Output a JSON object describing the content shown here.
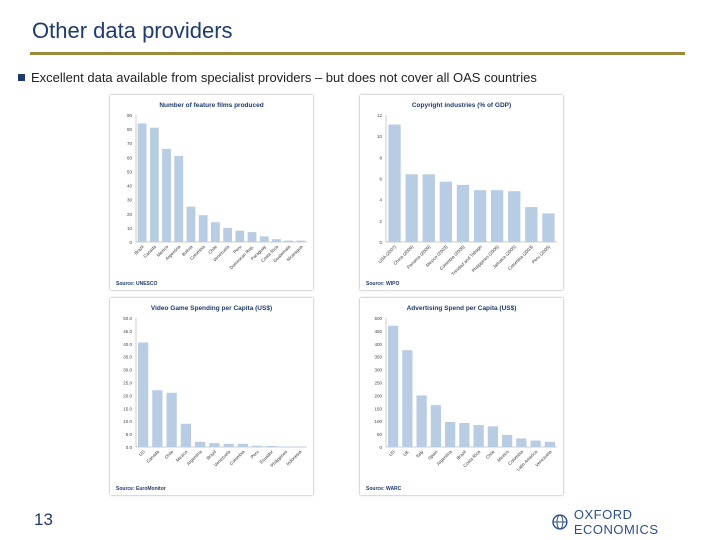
{
  "slide": {
    "title": "Other data providers",
    "bullet": "Excellent data available from specialist providers – but does not cover all OAS countries",
    "page_number": "13",
    "logo_text": "OXFORD ECONOMICS"
  },
  "colors": {
    "bar": "#b8cce4",
    "title": "#1f3a6e",
    "rule": "#9a8a3a",
    "source": "#1f3a6e"
  },
  "chart_data": [
    {
      "type": "bar",
      "title": "Number of feature films produced",
      "source": "Source: UNESCO",
      "categories": [
        "Brazil",
        "Canada",
        "Mexico",
        "Argentina",
        "Bolivia",
        "Colombia",
        "Chile",
        "Venezuela",
        "Peru",
        "Dominican Rep.",
        "Paraguay",
        "Costa Rica",
        "Guatemala",
        "Nicaragua"
      ],
      "values": [
        84,
        81,
        66,
        61,
        25,
        19,
        14,
        10,
        8,
        7,
        4,
        2,
        1,
        1
      ],
      "ylim": [
        0,
        90
      ],
      "yticks": [
        "0",
        "10",
        "20",
        "30",
        "40",
        "50",
        "60",
        "70",
        "80",
        "90"
      ]
    },
    {
      "type": "bar",
      "title": "Copyright industries (% of GDP)",
      "source": "Source: WIPO",
      "categories": [
        "USA (2007)",
        "China (2006)",
        "Panama (2006)",
        "Mexico (2003)",
        "Colombia (2006)",
        "Trinidad and Tobago",
        "Philippines (2006)",
        "Jamaica (2005)",
        "Colombia (2003)",
        "Peru (2005)"
      ],
      "values": [
        11.1,
        6.4,
        6.4,
        5.7,
        5.4,
        4.9,
        4.9,
        4.8,
        3.3,
        2.7
      ],
      "ylim": [
        0,
        12
      ],
      "yticks": [
        "0",
        "2",
        "4",
        "6",
        "8",
        "10",
        "12"
      ]
    },
    {
      "type": "bar",
      "title": "Video Game Spending per Capita (US$)",
      "source": "Source: EuroMonitor",
      "categories": [
        "US",
        "Canada",
        "Chile",
        "Mexico",
        "Argentina",
        "Brazil",
        "Venezuela",
        "Colombia",
        "Peru",
        "Ecuador",
        "Philippines",
        "Indonesia"
      ],
      "values": [
        40.5,
        22,
        21,
        9,
        2,
        1.5,
        1.2,
        1.2,
        0.5,
        0.4,
        0.2,
        0.1
      ],
      "ylim": [
        0,
        50
      ],
      "yticks": [
        "0.0",
        "5.0",
        "10.0",
        "15.0",
        "20.0",
        "25.0",
        "30.0",
        "35.0",
        "40.0",
        "45.0",
        "50.0"
      ]
    },
    {
      "type": "bar",
      "title": "Advertising Spend per Capita (US$)",
      "source": "Source: WARC",
      "categories": [
        "US",
        "UK",
        "Italy",
        "Spain",
        "Argentina",
        "Brazil",
        "Costa Rica",
        "Chile",
        "Mexico",
        "Colombia",
        "Latin America",
        "Venezuela"
      ],
      "values": [
        470,
        375,
        200,
        162,
        97,
        93,
        85,
        80,
        47,
        33,
        25,
        20
      ],
      "ylim": [
        0,
        500
      ],
      "yticks": [
        "0",
        "50",
        "100",
        "150",
        "200",
        "250",
        "300",
        "350",
        "400",
        "450",
        "500"
      ]
    }
  ]
}
